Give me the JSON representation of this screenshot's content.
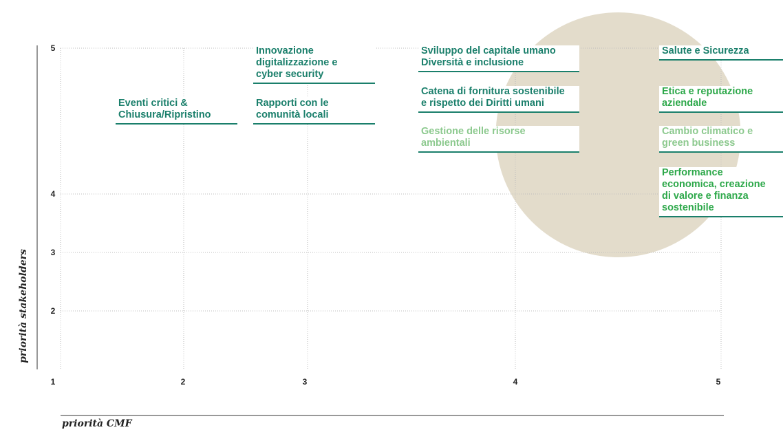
{
  "colors": {
    "teal": "#1a7f6b",
    "green": "#2da84a",
    "light_green": "#8cc98e",
    "circle": "#e3dccb",
    "grid": "#bdbdbd"
  },
  "chart_data": {
    "type": "scatter",
    "title": "",
    "xlabel": "priorità CMF",
    "ylabel": "priorità stakeholders",
    "xlim": [
      1,
      5
    ],
    "ylim": [
      1.5,
      5
    ],
    "x_ticks": [
      1,
      2,
      3,
      4,
      5
    ],
    "y_ticks": [
      2,
      3,
      4,
      5
    ],
    "grid": true,
    "highlight_region": {
      "shape": "circle",
      "center_x": 4.5,
      "center_y": 4.5,
      "color": "#e3dccb"
    },
    "points": [
      {
        "label": "Eventi critici &\nChiusura/Ripristino",
        "x": 2,
        "y": 4.6,
        "color": "#1a7f6b"
      },
      {
        "label": "Innovazione\ndigitalizzazione e\ncyber security",
        "x": 3,
        "y": 5,
        "color": "#1a7f6b"
      },
      {
        "label": "Rapporti con le\ncomunità locali",
        "x": 3,
        "y": 4.6,
        "color": "#1a7f6b"
      },
      {
        "label": "Sviluppo del capitale umano\nDiversità e inclusione",
        "x": 4,
        "y": 5,
        "color": "#1a7f6b"
      },
      {
        "label": "Catena di fornitura sostenibile\ne rispetto dei Diritti umani",
        "x": 4,
        "y": 4.75,
        "color": "#1a7f6b"
      },
      {
        "label": "Gestione delle risorse\nambientali",
        "x": 4,
        "y": 4.5,
        "color": "#8cc98e"
      },
      {
        "label": "Salute e Sicurezza",
        "x": 5,
        "y": 5,
        "color": "#1a7f6b"
      },
      {
        "label": "Etica e reputazione\naziendale",
        "x": 5,
        "y": 4.75,
        "color": "#2da84a"
      },
      {
        "label": "Cambio climatico e\ngreen business",
        "x": 5,
        "y": 4.5,
        "color": "#8cc98e"
      },
      {
        "label": "Performance\neconomica, creazione\ndi valore e finanza\nsostenibile",
        "x": 5,
        "y": 4.25,
        "color": "#2da84a"
      }
    ]
  }
}
